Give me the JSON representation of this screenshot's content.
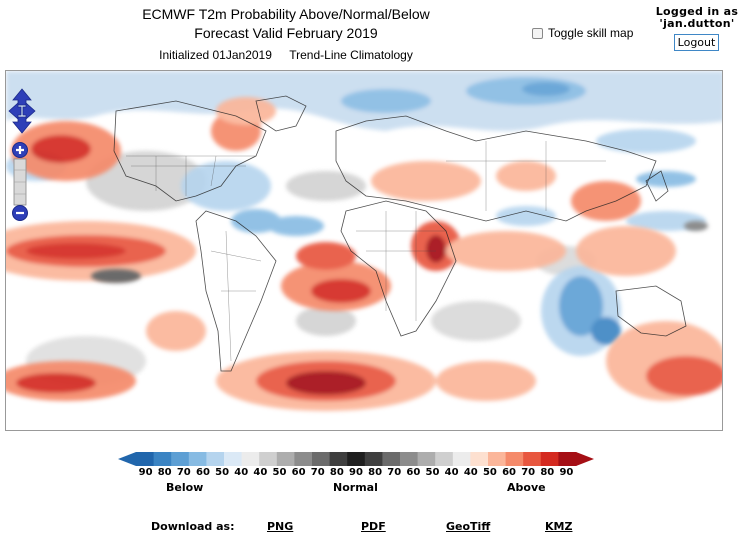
{
  "header": {
    "title_line1": "ECMWF T2m Probability Above/Normal/Below",
    "title_line2": "Forecast Valid February 2019",
    "initialized": "Initialized 01Jan2019",
    "climatology": "Trend-Line Climatology"
  },
  "toggle": {
    "label": "Toggle skill map",
    "checked": false
  },
  "user": {
    "line1": "Logged in as",
    "line2": "'jan.dutton'",
    "logout_label": "Logout"
  },
  "map": {
    "controls": [
      "pan-up",
      "pan-down",
      "pan-left",
      "pan-right",
      "zoom-in",
      "zoom-out"
    ]
  },
  "legend": {
    "ticks": [
      "90",
      "80",
      "70",
      "60",
      "50",
      "40",
      "40",
      "50",
      "60",
      "70",
      "80",
      "90",
      "80",
      "70",
      "60",
      "50",
      "40",
      "40",
      "50",
      "60",
      "70",
      "80",
      "90"
    ],
    "categories": {
      "below": "Below",
      "normal": "Normal",
      "above": "Above"
    },
    "colors": {
      "below": [
        "#2166ac",
        "#3b84c3",
        "#5d9fd4",
        "#87bbe3",
        "#b5d4ee",
        "#dbe9f6"
      ],
      "normal": [
        "#ececec",
        "#cfcfcf",
        "#adadad",
        "#8c8c8c",
        "#6b6b6b",
        "#3f3f3f",
        "#1f1f1f",
        "#3f3f3f",
        "#6b6b6b",
        "#8c8c8c",
        "#adadad",
        "#cfcfcf",
        "#ececec"
      ],
      "above": [
        "#fde0d0",
        "#fbb69a",
        "#f58a6a",
        "#e8573f",
        "#d42a20",
        "#a50f15"
      ]
    }
  },
  "downloads": {
    "label": "Download as:",
    "links": [
      "PNG",
      "PDF",
      "GeoTiff",
      "KMZ"
    ]
  }
}
